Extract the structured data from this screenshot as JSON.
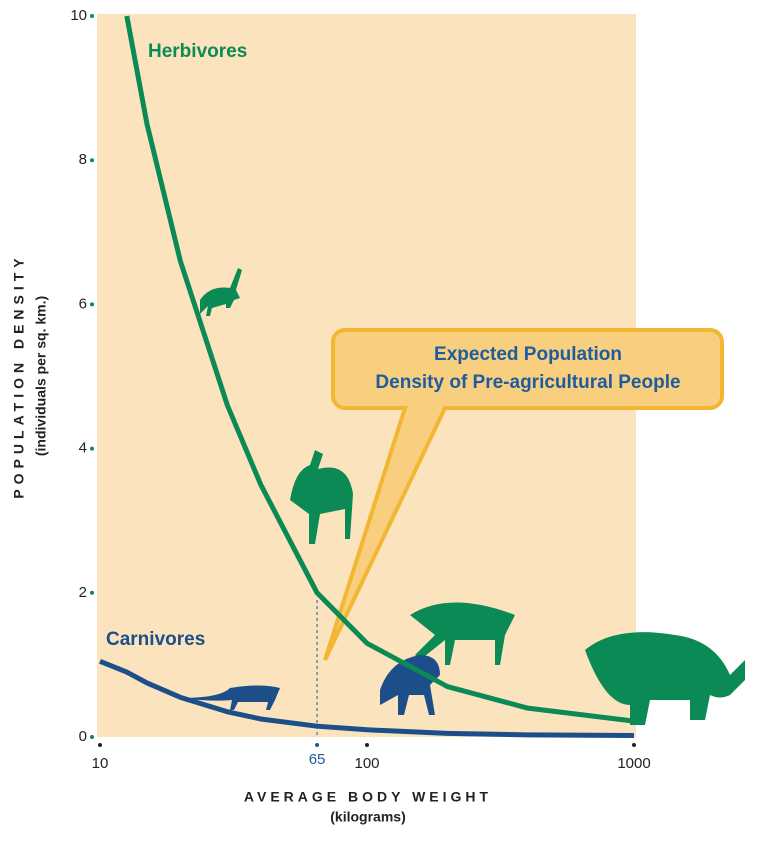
{
  "chart_data": {
    "type": "line",
    "x": [
      10,
      12.6,
      15,
      20,
      30,
      40,
      65,
      100,
      200,
      400,
      1000
    ],
    "series": [
      {
        "name": "Herbivores",
        "color": "#0b8a55",
        "values": [
          null,
          10,
          8.5,
          6.6,
          4.6,
          3.5,
          2.0,
          1.3,
          0.7,
          0.4,
          0.22
        ]
      },
      {
        "name": "Carnivores",
        "color": "#1c4f8a",
        "values": [
          1.05,
          0.9,
          0.75,
          0.55,
          0.35,
          0.25,
          0.15,
          0.1,
          0.05,
          0.03,
          0.02
        ]
      }
    ],
    "xlim": [
      10,
      1000
    ],
    "xticks": [
      10,
      100,
      1000
    ],
    "xscale": "log",
    "ylim": [
      0,
      10
    ],
    "yticks": [
      0,
      2,
      4,
      6,
      8,
      10
    ],
    "xlabel": [
      "AVERAGE BODY WEIGHT",
      "(kilograms)"
    ],
    "ylabel": [
      "POPULATION DENSITY",
      "(individuals per sq. km.)"
    ],
    "marker": {
      "x": 65
    },
    "annotation": [
      "Expected Population",
      "Density of Pre-agricultural People"
    ]
  }
}
